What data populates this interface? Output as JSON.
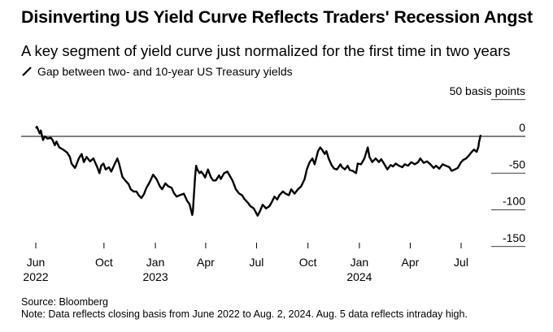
{
  "header": {
    "title": "Disinverting US Yield Curve Reflects Traders' Recession Angst",
    "subtitle": "A key segment of yield curve just normalized for the first time in two years"
  },
  "footer": {
    "source": "Source: Bloomberg",
    "note": "Note: Data reflects closing basis from June 2022 to Aug. 2, 2024. Aug. 5 data reflects intraday high."
  },
  "chart_data": {
    "type": "line",
    "series": [
      {
        "name": "Gap between two- and 10-year US Treasury yields",
        "color": "#000000",
        "points": [
          [
            "2022-06-01",
            11
          ],
          [
            "2022-06-03",
            13
          ],
          [
            "2022-06-08",
            4
          ],
          [
            "2022-06-10",
            8
          ],
          [
            "2022-06-14",
            -5
          ],
          [
            "2022-06-17",
            0
          ],
          [
            "2022-06-22",
            -3
          ],
          [
            "2022-06-28",
            -2
          ],
          [
            "2022-07-01",
            -5
          ],
          [
            "2022-07-05",
            -12
          ],
          [
            "2022-07-08",
            -7
          ],
          [
            "2022-07-13",
            -15
          ],
          [
            "2022-07-20",
            -18
          ],
          [
            "2022-07-27",
            -22
          ],
          [
            "2022-08-01",
            -28
          ],
          [
            "2022-08-04",
            -37
          ],
          [
            "2022-08-10",
            -43
          ],
          [
            "2022-08-12",
            -40
          ],
          [
            "2022-08-17",
            -30
          ],
          [
            "2022-08-22",
            -24
          ],
          [
            "2022-08-26",
            -35
          ],
          [
            "2022-08-31",
            -28
          ],
          [
            "2022-09-06",
            -34
          ],
          [
            "2022-09-12",
            -30
          ],
          [
            "2022-09-19",
            -42
          ],
          [
            "2022-09-23",
            -50
          ],
          [
            "2022-09-26",
            -40
          ],
          [
            "2022-09-30",
            -37
          ],
          [
            "2022-10-04",
            -45
          ],
          [
            "2022-10-10",
            -42
          ],
          [
            "2022-10-14",
            -48
          ],
          [
            "2022-10-20",
            -38
          ],
          [
            "2022-10-25",
            -30
          ],
          [
            "2022-10-28",
            -37
          ],
          [
            "2022-11-03",
            -55
          ],
          [
            "2022-11-08",
            -60
          ],
          [
            "2022-11-14",
            -65
          ],
          [
            "2022-11-18",
            -72
          ],
          [
            "2022-11-23",
            -75
          ],
          [
            "2022-11-28",
            -75
          ],
          [
            "2022-12-02",
            -80
          ],
          [
            "2022-12-07",
            -84
          ],
          [
            "2022-12-12",
            -78
          ],
          [
            "2022-12-16",
            -70
          ],
          [
            "2022-12-22",
            -62
          ],
          [
            "2022-12-28",
            -52
          ],
          [
            "2023-01-03",
            -58
          ],
          [
            "2023-01-09",
            -68
          ],
          [
            "2023-01-13",
            -72
          ],
          [
            "2023-01-19",
            -64
          ],
          [
            "2023-01-24",
            -68
          ],
          [
            "2023-01-30",
            -70
          ],
          [
            "2023-02-03",
            -77
          ],
          [
            "2023-02-08",
            -82
          ],
          [
            "2023-02-14",
            -80
          ],
          [
            "2023-02-21",
            -78
          ],
          [
            "2023-02-27",
            -88
          ],
          [
            "2023-03-03",
            -92
          ],
          [
            "2023-03-08",
            -107
          ],
          [
            "2023-03-09",
            -103
          ],
          [
            "2023-03-13",
            -55
          ],
          [
            "2023-03-15",
            -40
          ],
          [
            "2023-03-17",
            -45
          ],
          [
            "2023-03-21",
            -50
          ],
          [
            "2023-03-24",
            -48
          ],
          [
            "2023-03-28",
            -52
          ],
          [
            "2023-03-31",
            -56
          ],
          [
            "2023-04-05",
            -45
          ],
          [
            "2023-04-10",
            -55
          ],
          [
            "2023-04-14",
            -60
          ],
          [
            "2023-04-19",
            -60
          ],
          [
            "2023-04-25",
            -53
          ],
          [
            "2023-04-28",
            -58
          ],
          [
            "2023-05-04",
            -50
          ],
          [
            "2023-05-10",
            -48
          ],
          [
            "2023-05-15",
            -55
          ],
          [
            "2023-05-19",
            -60
          ],
          [
            "2023-05-25",
            -72
          ],
          [
            "2023-05-31",
            -78
          ],
          [
            "2023-06-05",
            -80
          ],
          [
            "2023-06-09",
            -85
          ],
          [
            "2023-06-15",
            -90
          ],
          [
            "2023-06-20",
            -95
          ],
          [
            "2023-06-26",
            -98
          ],
          [
            "2023-07-03",
            -108
          ],
          [
            "2023-07-07",
            -102
          ],
          [
            "2023-07-12",
            -93
          ],
          [
            "2023-07-18",
            -98
          ],
          [
            "2023-07-24",
            -95
          ],
          [
            "2023-07-28",
            -90
          ],
          [
            "2023-08-02",
            -82
          ],
          [
            "2023-08-07",
            -86
          ],
          [
            "2023-08-11",
            -80
          ],
          [
            "2023-08-17",
            -75
          ],
          [
            "2023-08-22",
            -78
          ],
          [
            "2023-08-28",
            -80
          ],
          [
            "2023-09-01",
            -72
          ],
          [
            "2023-09-07",
            -78
          ],
          [
            "2023-09-13",
            -72
          ],
          [
            "2023-09-19",
            -68
          ],
          [
            "2023-09-25",
            -58
          ],
          [
            "2023-09-29",
            -45
          ],
          [
            "2023-10-04",
            -35
          ],
          [
            "2023-10-09",
            -30
          ],
          [
            "2023-10-13",
            -38
          ],
          [
            "2023-10-19",
            -20
          ],
          [
            "2023-10-23",
            -15
          ],
          [
            "2023-10-26",
            -18
          ],
          [
            "2023-10-31",
            -24
          ],
          [
            "2023-11-03",
            -20
          ],
          [
            "2023-11-07",
            -30
          ],
          [
            "2023-11-13",
            -40
          ],
          [
            "2023-11-17",
            -44
          ],
          [
            "2023-11-22",
            -45
          ],
          [
            "2023-11-28",
            -38
          ],
          [
            "2023-12-01",
            -42
          ],
          [
            "2023-12-06",
            -45
          ],
          [
            "2023-12-11",
            -40
          ],
          [
            "2023-12-15",
            -46
          ],
          [
            "2023-12-20",
            -47
          ],
          [
            "2023-12-26",
            -50
          ],
          [
            "2023-12-29",
            -37
          ],
          [
            "2024-01-04",
            -38
          ],
          [
            "2024-01-10",
            -30
          ],
          [
            "2024-01-16",
            -15
          ],
          [
            "2024-01-19",
            -28
          ],
          [
            "2024-01-24",
            -35
          ],
          [
            "2024-01-30",
            -30
          ],
          [
            "2024-02-05",
            -35
          ],
          [
            "2024-02-09",
            -31
          ],
          [
            "2024-02-14",
            -37
          ],
          [
            "2024-02-20",
            -45
          ],
          [
            "2024-02-26",
            -39
          ],
          [
            "2024-03-01",
            -41
          ],
          [
            "2024-03-06",
            -37
          ],
          [
            "2024-03-12",
            -40
          ],
          [
            "2024-03-18",
            -42
          ],
          [
            "2024-03-22",
            -38
          ],
          [
            "2024-03-28",
            -40
          ],
          [
            "2024-04-03",
            -35
          ],
          [
            "2024-04-09",
            -38
          ],
          [
            "2024-04-15",
            -35
          ],
          [
            "2024-04-19",
            -30
          ],
          [
            "2024-04-25",
            -36
          ],
          [
            "2024-05-01",
            -34
          ],
          [
            "2024-05-07",
            -38
          ],
          [
            "2024-05-13",
            -43
          ],
          [
            "2024-05-17",
            -40
          ],
          [
            "2024-05-23",
            -44
          ],
          [
            "2024-05-29",
            -38
          ],
          [
            "2024-06-04",
            -40
          ],
          [
            "2024-06-10",
            -42
          ],
          [
            "2024-06-14",
            -47
          ],
          [
            "2024-06-20",
            -45
          ],
          [
            "2024-06-25",
            -43
          ],
          [
            "2024-07-01",
            -35
          ],
          [
            "2024-07-05",
            -32
          ],
          [
            "2024-07-10",
            -30
          ],
          [
            "2024-07-15",
            -26
          ],
          [
            "2024-07-19",
            -22
          ],
          [
            "2024-07-24",
            -18
          ],
          [
            "2024-07-29",
            -21
          ],
          [
            "2024-08-01",
            -14
          ],
          [
            "2024-08-02",
            -8
          ],
          [
            "2024-08-05",
            2
          ]
        ]
      }
    ],
    "y_unit_label": "50 basis points",
    "y_ticks": [
      0,
      -50,
      -100,
      -150
    ],
    "y_tick_labels": [
      "0",
      "-50",
      "-100",
      "-150"
    ],
    "ylim": [
      -150,
      50
    ],
    "x_ticks": [
      {
        "date": "2022-06-01",
        "label": "Jun",
        "year": "2022"
      },
      {
        "date": "2022-10-01",
        "label": "Oct",
        "year": ""
      },
      {
        "date": "2023-01-01",
        "label": "Jan",
        "year": "2023"
      },
      {
        "date": "2023-04-01",
        "label": "Apr",
        "year": ""
      },
      {
        "date": "2023-07-01",
        "label": "Jul",
        "year": ""
      },
      {
        "date": "2023-10-01",
        "label": "Oct",
        "year": ""
      },
      {
        "date": "2024-01-01",
        "label": "Jan",
        "year": "2024"
      },
      {
        "date": "2024-04-01",
        "label": "Apr",
        "year": ""
      },
      {
        "date": "2024-07-01",
        "label": "Jul",
        "year": ""
      }
    ],
    "zero_line": true,
    "grid": true,
    "legend_placement": "top-left"
  }
}
